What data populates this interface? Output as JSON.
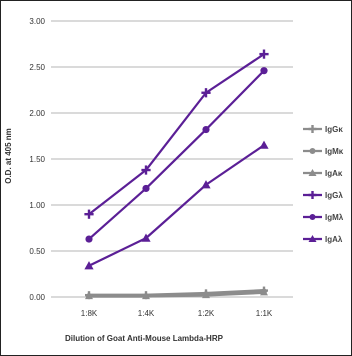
{
  "chart_data": {
    "type": "line",
    "title": "",
    "xlabel": "Dilution of Goat Anti-Mouse Lambda-HRP",
    "ylabel": "O.D. at 405 nm",
    "categories": [
      "1:8K",
      "1:4K",
      "1:2K",
      "1:1K"
    ],
    "ylim": [
      0,
      3.0
    ],
    "yticks": [
      "0.00",
      "0.50",
      "1.00",
      "1.50",
      "2.00",
      "2.50",
      "3.00"
    ],
    "grid": true,
    "legend_position": "right",
    "series": [
      {
        "name": "IgGκ",
        "values": [
          0.02,
          0.02,
          0.04,
          0.07
        ],
        "color": "#8c8c8c",
        "marker": "plus"
      },
      {
        "name": "IgMκ",
        "values": [
          0.01,
          0.01,
          0.03,
          0.06
        ],
        "color": "#8c8c8c",
        "marker": "circle"
      },
      {
        "name": "IgAκ",
        "values": [
          0.01,
          0.01,
          0.02,
          0.05
        ],
        "color": "#8c8c8c",
        "marker": "triangle"
      },
      {
        "name": "IgGλ",
        "values": [
          0.9,
          1.38,
          2.22,
          2.64
        ],
        "color": "#5b1f96",
        "marker": "plus"
      },
      {
        "name": "IgMλ",
        "values": [
          0.63,
          1.18,
          1.82,
          2.46
        ],
        "color": "#5b1f96",
        "marker": "circle"
      },
      {
        "name": "IgAλ",
        "values": [
          0.34,
          0.64,
          1.22,
          1.65
        ],
        "color": "#5b1f96",
        "marker": "triangle"
      }
    ]
  }
}
